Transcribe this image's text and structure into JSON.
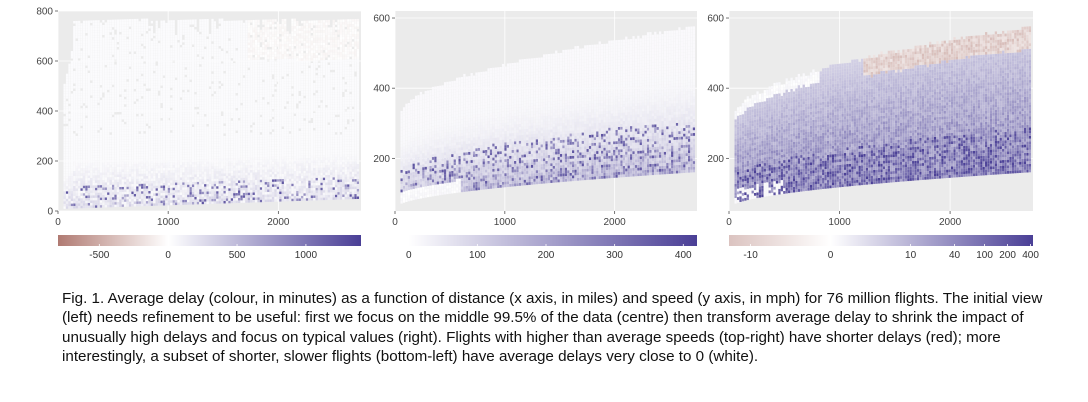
{
  "chart_data": [
    {
      "type": "heatmap",
      "panel": "left",
      "x_ticks": [
        "0",
        "1000",
        "2000"
      ],
      "y_ticks": [
        "0",
        "200",
        "400",
        "600",
        "800"
      ],
      "xlim": [
        0,
        2750
      ],
      "ylim": [
        0,
        800
      ],
      "colorbar": {
        "ticks": [
          "-500",
          "0",
          "500",
          "1000"
        ],
        "range": [
          -800,
          1400
        ],
        "scale": "linear"
      }
    },
    {
      "type": "heatmap",
      "panel": "centre",
      "x_ticks": [
        "0",
        "1000",
        "2000"
      ],
      "y_ticks": [
        "200",
        "400",
        "600"
      ],
      "xlim": [
        0,
        2750
      ],
      "ylim": [
        50,
        620
      ],
      "colorbar": {
        "ticks": [
          "0",
          "100",
          "200",
          "300",
          "400"
        ],
        "range": [
          -20,
          420
        ],
        "scale": "linear"
      }
    },
    {
      "type": "heatmap",
      "panel": "right",
      "x_ticks": [
        "0",
        "1000",
        "2000"
      ],
      "y_ticks": [
        "200",
        "400",
        "600"
      ],
      "xlim": [
        0,
        2750
      ],
      "ylim": [
        50,
        620
      ],
      "colorbar": {
        "ticks": [
          "-10",
          "0",
          "10",
          "40",
          "100",
          "200",
          "400"
        ],
        "scale": "signed-log"
      }
    }
  ],
  "colors": {
    "panel_bg": "#ebebeb",
    "negative": "#b07a72",
    "zero": "#ffffff",
    "positive": "#4a3f96"
  },
  "caption": "Fig. 1. Average delay (colour, in minutes) as a function of distance (x axis, in miles) and speed (y axis, in mph) for 76 million flights. The initial view (left) needs refinement to be useful: first we focus on the middle 99.5% of the data (centre) then transform average delay to shrink the impact of unusually high delays and focus on typical values (right). Flights with higher than average speeds (top-right) have shorter delays (red); more interestingly, a subset of shorter, slower flights (bottom-left) have average delays very close to 0 (white)."
}
